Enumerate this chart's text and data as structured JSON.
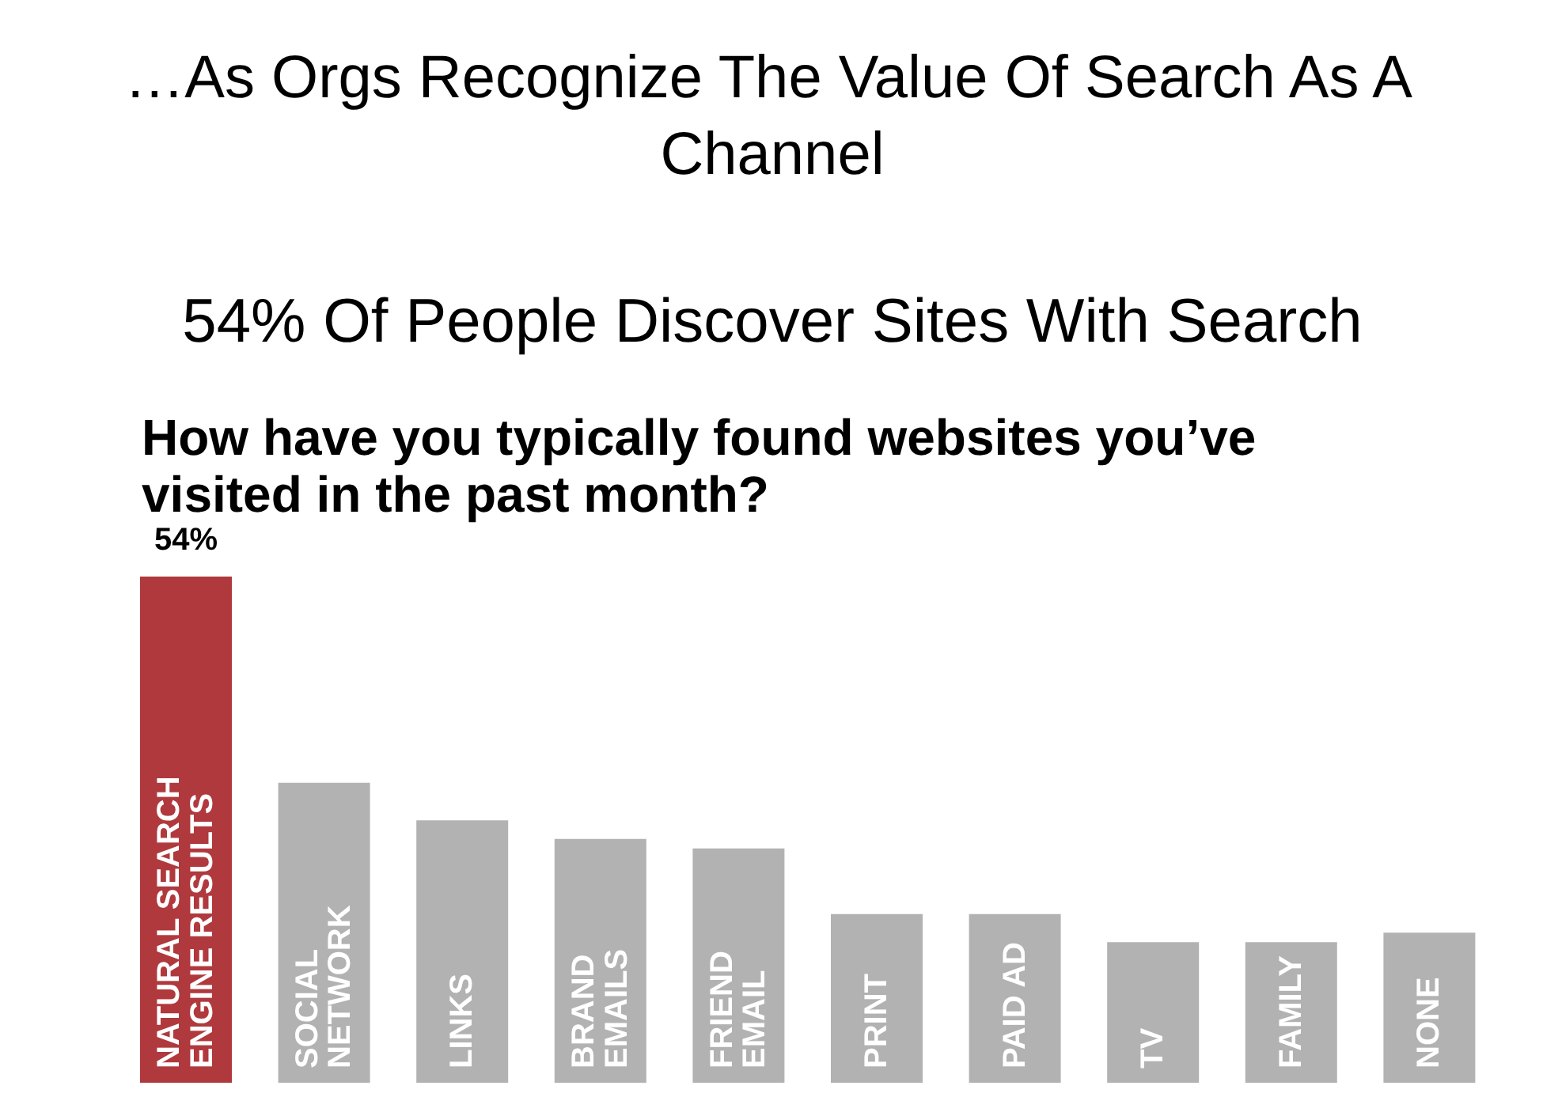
{
  "chart_data": {
    "type": "bar",
    "title": "…As Orgs Recognize The Value Of Search As A Channel",
    "subtitle": "54% Of People Discover Sites With Search",
    "annotations": [
      "How have you typically found websites you’ve visited in the past month?"
    ],
    "categories": [
      "NATURAL SEARCH ENGINE RESULTS",
      "SOCIAL NETWORK",
      "LINKS",
      "BRAND EMAILS",
      "FRIEND EMAIL",
      "PRINT",
      "PAID AD",
      "TV",
      "FAMILY",
      "NONE"
    ],
    "values": [
      54,
      32,
      28,
      26,
      25,
      18,
      18,
      15,
      15,
      16
    ],
    "colors": [
      "#b0393d",
      "#b2b2b2",
      "#b2b2b2",
      "#b2b2b2",
      "#b2b2b2",
      "#b2b2b2",
      "#b2b2b2",
      "#b2b2b2",
      "#b2b2b2",
      "#b2b2b2"
    ],
    "value_labels": [
      "54%",
      null,
      null,
      null,
      null,
      null,
      null,
      null,
      null,
      null
    ]
  }
}
